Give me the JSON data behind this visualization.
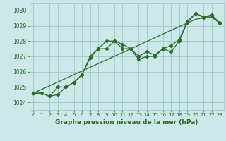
{
  "x": [
    0,
    1,
    2,
    3,
    4,
    5,
    6,
    7,
    8,
    9,
    10,
    11,
    12,
    13,
    14,
    15,
    16,
    17,
    18,
    19,
    20,
    21,
    22,
    23
  ],
  "line1": [
    1024.6,
    1024.6,
    1024.4,
    1024.5,
    1025.0,
    1025.3,
    1025.8,
    1027.0,
    1027.5,
    1028.0,
    1028.0,
    1027.8,
    1027.5,
    1027.0,
    1027.3,
    1027.1,
    1027.5,
    1027.7,
    1028.1,
    1029.3,
    1029.8,
    1029.6,
    1029.7,
    1029.2
  ],
  "line2": [
    1024.6,
    1024.6,
    1024.4,
    1025.0,
    1025.0,
    1025.3,
    1025.8,
    1026.9,
    1027.5,
    1027.5,
    1028.0,
    1027.5,
    1027.5,
    1026.8,
    1027.0,
    1027.0,
    1027.5,
    1027.3,
    1028.0,
    1029.2,
    1029.8,
    1029.55,
    1029.65,
    1029.15
  ],
  "line3_straight": [
    1024.6,
    1024.84,
    1025.08,
    1025.32,
    1025.57,
    1025.81,
    1026.05,
    1026.29,
    1026.53,
    1026.77,
    1027.01,
    1027.25,
    1027.49,
    1027.73,
    1027.97,
    1028.22,
    1028.46,
    1028.7,
    1028.94,
    1029.18,
    1029.42,
    1029.52,
    1029.55,
    1029.2
  ],
  "line_color": "#2d6a2d",
  "bg_color": "#cce8e8",
  "grid_color": "#a0c8c8",
  "xlabel": "Graphe pression niveau de la mer (hPa)",
  "xlabel_color": "#2d6a2d",
  "ylim": [
    1023.5,
    1030.5
  ],
  "xlim": [
    -0.5,
    23.5
  ],
  "yticks": [
    1024,
    1025,
    1026,
    1027,
    1028,
    1029,
    1030
  ],
  "xticks": [
    0,
    1,
    2,
    3,
    4,
    5,
    6,
    7,
    8,
    9,
    10,
    11,
    12,
    13,
    14,
    15,
    16,
    17,
    18,
    19,
    20,
    21,
    22,
    23
  ],
  "marker": "D",
  "markersize": 2.2,
  "linewidth": 0.9,
  "tick_fontsize": 5.5,
  "xlabel_fontsize": 6.5
}
